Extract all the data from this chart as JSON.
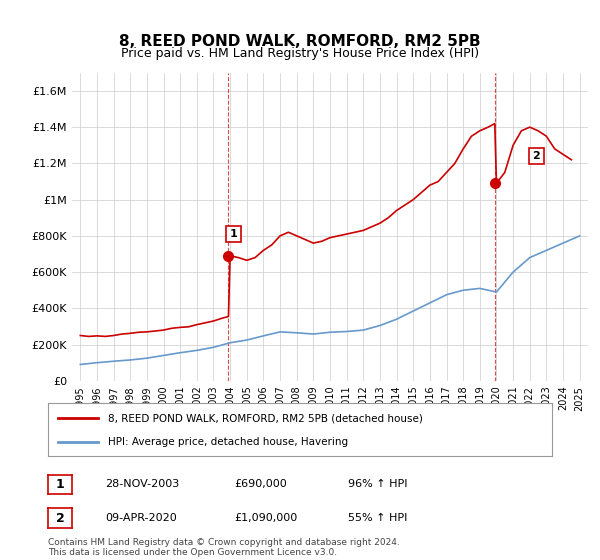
{
  "title": "8, REED POND WALK, ROMFORD, RM2 5PB",
  "subtitle": "Price paid vs. HM Land Registry's House Price Index (HPI)",
  "legend_line1": "8, REED POND WALK, ROMFORD, RM2 5PB (detached house)",
  "legend_line2": "HPI: Average price, detached house, Havering",
  "annotation1_label": "1",
  "annotation1_date": "28-NOV-2003",
  "annotation1_price": "£690,000",
  "annotation1_hpi": "96% ↑ HPI",
  "annotation2_label": "2",
  "annotation2_date": "09-APR-2020",
  "annotation2_price": "£1,090,000",
  "annotation2_hpi": "55% ↑ HPI",
  "footer": "Contains HM Land Registry data © Crown copyright and database right 2024.\nThis data is licensed under the Open Government Licence v3.0.",
  "hpi_color": "#6699cc",
  "price_color": "#cc0000",
  "annotation_color": "#cc0000",
  "ylim": [
    0,
    1700000
  ],
  "yticks": [
    0,
    200000,
    400000,
    600000,
    800000,
    1000000,
    1200000,
    1400000,
    1600000
  ],
  "ytick_labels": [
    "£0",
    "£200K",
    "£400K",
    "£600K",
    "£800K",
    "£1M",
    "£1.2M",
    "£1.4M",
    "£1.6M"
  ],
  "hpi_years": [
    1995,
    1996,
    1997,
    1998,
    1999,
    2000,
    2001,
    2002,
    2003,
    2004,
    2005,
    2006,
    2007,
    2008,
    2009,
    2010,
    2011,
    2012,
    2013,
    2014,
    2015,
    2016,
    2017,
    2018,
    2019,
    2020,
    2021,
    2022,
    2023,
    2024,
    2025
  ],
  "hpi_values": [
    90000,
    100000,
    108000,
    115000,
    125000,
    140000,
    155000,
    168000,
    185000,
    210000,
    225000,
    248000,
    270000,
    265000,
    258000,
    268000,
    272000,
    280000,
    305000,
    340000,
    385000,
    430000,
    475000,
    500000,
    510000,
    490000,
    600000,
    680000,
    720000,
    760000,
    800000
  ],
  "price_years": [
    1995.0,
    1995.5,
    1996.0,
    1996.5,
    1997.0,
    1997.5,
    1998.0,
    1998.5,
    1999.0,
    1999.5,
    2000.0,
    2000.5,
    2001.0,
    2001.5,
    2002.0,
    2002.5,
    2003.0,
    2003.5,
    2003.9,
    2004.0,
    2004.5,
    2005.0,
    2005.5,
    2006.0,
    2006.5,
    2007.0,
    2007.5,
    2008.0,
    2008.5,
    2009.0,
    2009.5,
    2010.0,
    2010.5,
    2011.0,
    2011.5,
    2012.0,
    2012.5,
    2013.0,
    2013.5,
    2014.0,
    2014.5,
    2015.0,
    2015.5,
    2016.0,
    2016.5,
    2017.0,
    2017.5,
    2018.0,
    2018.5,
    2019.0,
    2019.5,
    2019.9,
    2020.0,
    2020.5,
    2021.0,
    2021.5,
    2022.0,
    2022.5,
    2023.0,
    2023.5,
    2024.0,
    2024.5
  ],
  "price_values": [
    250000,
    245000,
    248000,
    245000,
    250000,
    258000,
    262000,
    268000,
    270000,
    275000,
    280000,
    290000,
    295000,
    298000,
    310000,
    320000,
    330000,
    345000,
    355000,
    690000,
    680000,
    665000,
    680000,
    720000,
    750000,
    800000,
    820000,
    800000,
    780000,
    760000,
    770000,
    790000,
    800000,
    810000,
    820000,
    830000,
    850000,
    870000,
    900000,
    940000,
    970000,
    1000000,
    1040000,
    1080000,
    1100000,
    1150000,
    1200000,
    1280000,
    1350000,
    1380000,
    1400000,
    1420000,
    1090000,
    1150000,
    1300000,
    1380000,
    1400000,
    1380000,
    1350000,
    1280000,
    1250000,
    1220000
  ],
  "sale1_x": 2003.9,
  "sale1_y": 690000,
  "sale2_x": 2019.9,
  "sale2_y": 1090000,
  "vline1_x": 2003.9,
  "vline2_x": 2019.9,
  "xticks": [
    1995,
    1996,
    1997,
    1998,
    1999,
    2000,
    2001,
    2002,
    2003,
    2004,
    2005,
    2006,
    2007,
    2008,
    2009,
    2010,
    2011,
    2012,
    2013,
    2014,
    2015,
    2016,
    2017,
    2018,
    2019,
    2020,
    2021,
    2022,
    2023,
    2024,
    2025
  ],
  "background_color": "#ffffff",
  "grid_color": "#cccccc"
}
